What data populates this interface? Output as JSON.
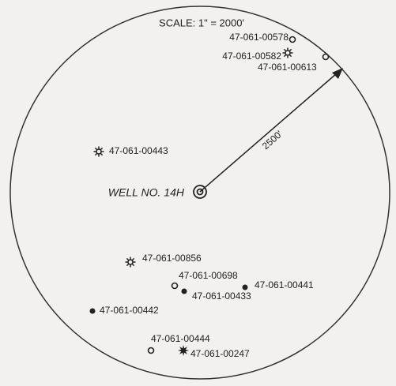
{
  "scale": "SCALE: 1\" = 2000'",
  "radius_label": "2500'",
  "center_well": "WELL NO. 14H",
  "wells": [
    {
      "label": "47-061-00578",
      "symbol": "open"
    },
    {
      "label": "47-061-00582",
      "symbol": "gas"
    },
    {
      "label": "47-061-00613",
      "symbol": "open"
    },
    {
      "label": "47-061-00443",
      "symbol": "gas"
    },
    {
      "label": "47-061-00856",
      "symbol": "gas"
    },
    {
      "label": "47-061-00698",
      "symbol": "open"
    },
    {
      "label": "47-061-00433",
      "symbol": "filled"
    },
    {
      "label": "47-061-00441",
      "symbol": "filled"
    },
    {
      "label": "47-061-00442",
      "symbol": "filled"
    },
    {
      "label": "47-061-00444",
      "symbol": "open"
    },
    {
      "label": "47-061-00247",
      "symbol": "burst"
    }
  ]
}
